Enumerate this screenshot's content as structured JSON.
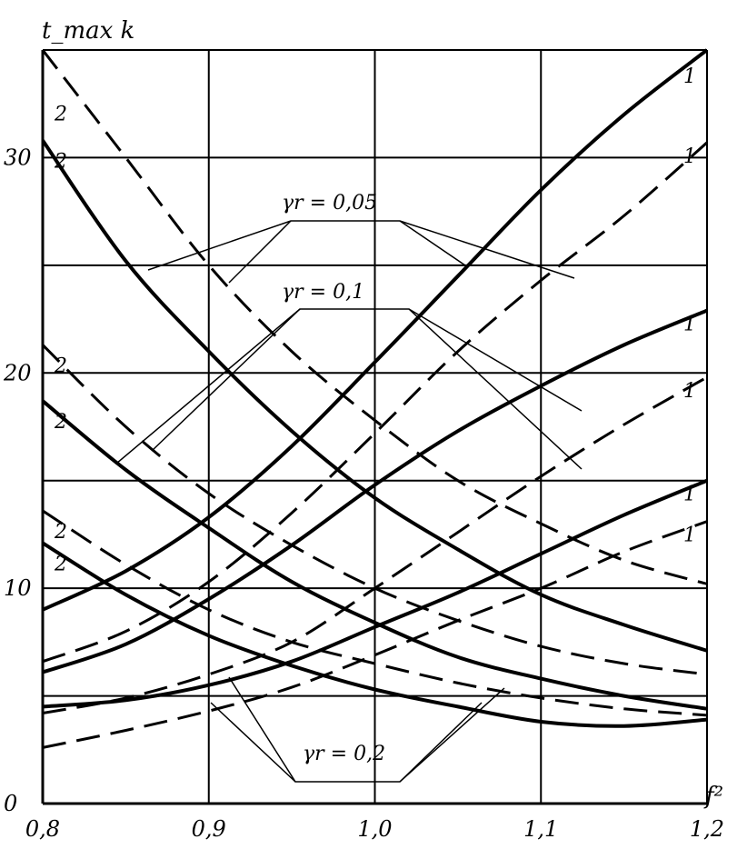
{
  "chart_data": {
    "type": "line",
    "ylabel": "t_max k",
    "xlabel": "f²",
    "xlim": [
      0.8,
      1.2
    ],
    "ylim": [
      0,
      35
    ],
    "x_ticks": [
      "0,8",
      "0,9",
      "1,0",
      "1,1",
      "1,2"
    ],
    "y_ticks": [
      {
        "v": 0,
        "label": "0"
      },
      {
        "v": 10,
        "label": "10"
      },
      {
        "v": 20,
        "label": "20"
      },
      {
        "v": 30,
        "label": "30"
      }
    ],
    "grid": true,
    "groups": [
      {
        "label": "γr = 0,05",
        "series": [
          {
            "style": "solid",
            "label": "1",
            "x": [
              0.8,
              0.85,
              0.9,
              0.95,
              1.0,
              1.05,
              1.1,
              1.15,
              1.2
            ],
            "y": [
              9,
              10.8,
              13.3,
              16.6,
              20.5,
              24.5,
              28.5,
              32.0,
              35
            ]
          },
          {
            "style": "dashed",
            "label": "1",
            "x": [
              0.8,
              0.85,
              0.9,
              0.95,
              1.0,
              1.05,
              1.1,
              1.15,
              1.2
            ],
            "y": [
              6.6,
              8.0,
              10.3,
              13.5,
              17.2,
              21.0,
              24.3,
              27.3,
              30.7
            ]
          },
          {
            "style": "solid",
            "label": "2",
            "x": [
              0.8,
              0.85,
              0.9,
              0.95,
              1.0,
              1.05,
              1.1,
              1.15,
              1.2
            ],
            "y": [
              30.8,
              25.2,
              21.0,
              17.3,
              14.2,
              11.8,
              9.7,
              8.3,
              7.1
            ]
          },
          {
            "style": "dashed",
            "label": "2",
            "x": [
              0.8,
              0.85,
              0.9,
              0.95,
              1.0,
              1.05,
              1.1,
              1.15,
              1.2
            ],
            "y": [
              35,
              30.0,
              25.0,
              21.0,
              17.8,
              15.0,
              13.0,
              11.3,
              10.2
            ]
          }
        ]
      },
      {
        "label": "γr = 0,1",
        "series": [
          {
            "style": "solid",
            "label": "1",
            "x": [
              0.8,
              0.85,
              0.9,
              0.95,
              1.0,
              1.05,
              1.1,
              1.15,
              1.2
            ],
            "y": [
              6.1,
              7.4,
              9.5,
              12.0,
              14.8,
              17.3,
              19.4,
              21.3,
              22.9
            ]
          },
          {
            "style": "dashed",
            "label": "1",
            "x": [
              0.8,
              0.85,
              0.9,
              0.95,
              1.0,
              1.05,
              1.1,
              1.15,
              1.2
            ],
            "y": [
              4.2,
              4.9,
              6.0,
              7.5,
              10.0,
              12.6,
              15.2,
              17.6,
              19.8
            ]
          },
          {
            "style": "solid",
            "label": "2",
            "x": [
              0.8,
              0.85,
              0.9,
              0.95,
              1.0,
              1.05,
              1.1,
              1.15,
              1.2
            ],
            "y": [
              18.7,
              15.5,
              12.8,
              10.3,
              8.4,
              6.8,
              5.8,
              5.0,
              4.4
            ]
          },
          {
            "style": "dashed",
            "label": "2",
            "x": [
              0.8,
              0.85,
              0.9,
              0.95,
              1.0,
              1.05,
              1.1,
              1.15,
              1.2
            ],
            "y": [
              21.3,
              17.5,
              14.4,
              12.0,
              10.0,
              8.5,
              7.3,
              6.5,
              6.0
            ]
          }
        ]
      },
      {
        "label": "γr = 0,2",
        "series": [
          {
            "style": "solid",
            "label": "1",
            "x": [
              0.8,
              0.85,
              0.9,
              0.95,
              1.0,
              1.05,
              1.1,
              1.15,
              1.2
            ],
            "y": [
              4.5,
              4.8,
              5.5,
              6.6,
              8.2,
              9.8,
              11.6,
              13.4,
              15.0
            ]
          },
          {
            "style": "dashed",
            "label": "1",
            "x": [
              0.8,
              0.85,
              0.9,
              0.95,
              1.0,
              1.05,
              1.1,
              1.15,
              1.2
            ],
            "y": [
              2.6,
              3.4,
              4.3,
              5.4,
              6.9,
              8.5,
              10.0,
              11.7,
              13.1
            ]
          },
          {
            "style": "solid",
            "label": "2",
            "x": [
              0.8,
              0.85,
              0.9,
              0.95,
              1.0,
              1.05,
              1.1,
              1.15,
              1.2
            ],
            "y": [
              12.1,
              9.7,
              7.8,
              6.4,
              5.3,
              4.5,
              3.8,
              3.6,
              3.9
            ]
          },
          {
            "style": "dashed",
            "label": "2",
            "x": [
              0.8,
              0.85,
              0.9,
              0.95,
              1.0,
              1.05,
              1.1,
              1.15,
              1.2
            ],
            "y": [
              13.6,
              11.1,
              9.0,
              7.5,
              6.5,
              5.6,
              4.9,
              4.4,
              4.1
            ]
          }
        ]
      }
    ]
  }
}
